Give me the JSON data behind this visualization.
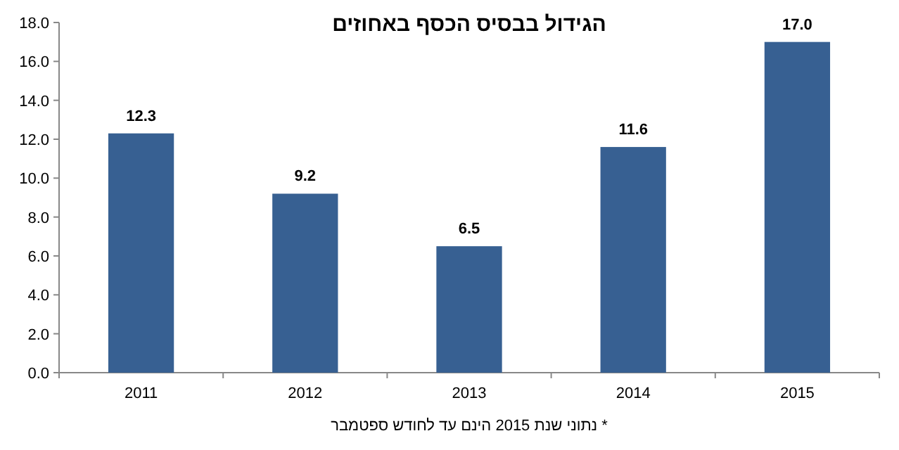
{
  "chart_data": {
    "type": "bar",
    "title": "הגידול בבסיס הכסף באחוזים",
    "categories": [
      "2011",
      "2012",
      "2013",
      "2014",
      "2015"
    ],
    "values": [
      12.3,
      9.2,
      6.5,
      11.6,
      17.0
    ],
    "value_labels": [
      "12.3",
      "9.2",
      "6.5",
      "11.6",
      "17.0"
    ],
    "color": "#376092",
    "ylim": [
      0,
      18
    ],
    "yticks": [
      {
        "value": 0,
        "label": "0.0"
      },
      {
        "value": 2,
        "label": "2.0"
      },
      {
        "value": 4,
        "label": "4.0"
      },
      {
        "value": 6,
        "label": "6.0"
      },
      {
        "value": 8,
        "label": "8.0"
      },
      {
        "value": 10,
        "label": "10.0"
      },
      {
        "value": 12,
        "label": "12.0"
      },
      {
        "value": 14,
        "label": "14.0"
      },
      {
        "value": 16,
        "label": "16.0"
      },
      {
        "value": 18,
        "label": "18.0"
      }
    ],
    "annotations": [
      "* נתוני שנת 2015 הינם עד לחודש ספטמבר"
    ]
  }
}
